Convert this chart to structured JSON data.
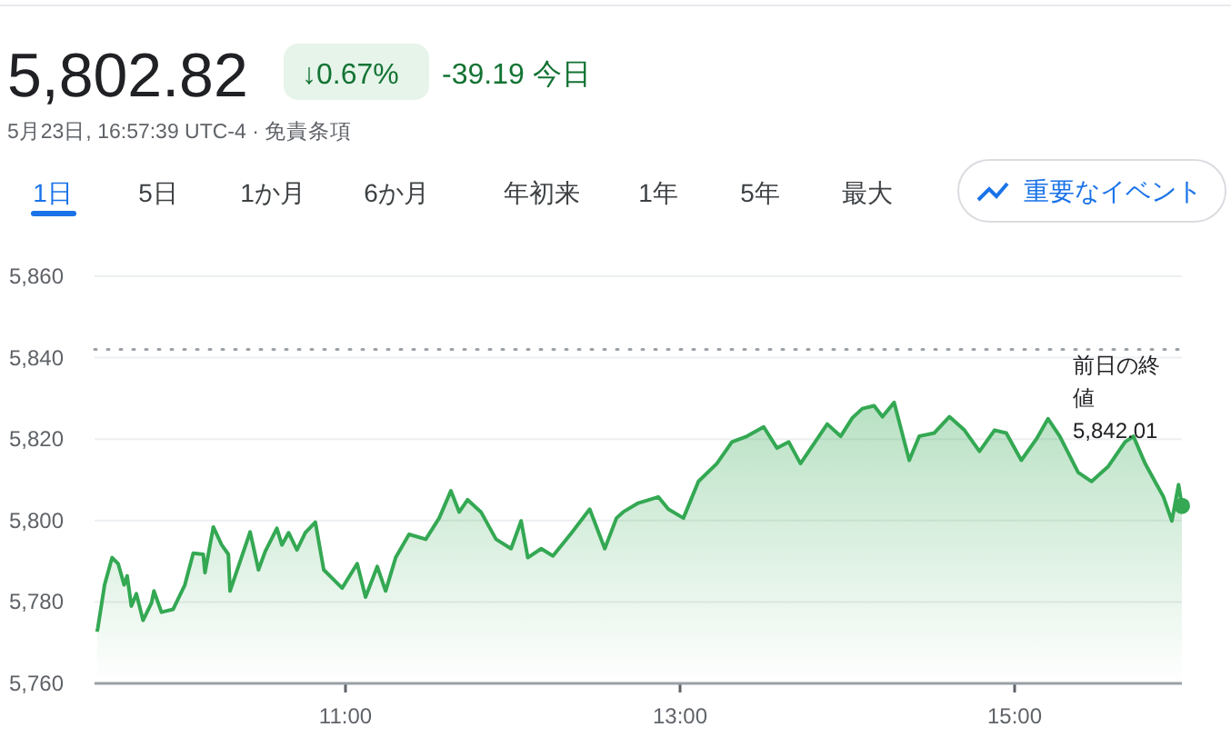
{
  "chart_data": {
    "type": "area",
    "title": "5,802.82",
    "subtitle": "5月23日, 16:57:39 UTC-4 · 免責条項",
    "annotations": [
      "↓0.67%",
      "-39.19 今日",
      "1日",
      "5日",
      "1か月",
      "6か月",
      "年初来",
      "1年",
      "5年",
      "最大",
      "重要なイベント"
    ],
    "x": [
      9.515,
      9.52,
      9.56,
      9.605,
      9.641,
      9.677,
      9.695,
      9.72,
      9.75,
      9.79,
      9.84,
      9.855,
      9.9,
      9.97,
      10.04,
      10.09,
      10.15,
      10.16,
      10.21,
      10.26,
      10.3,
      10.31,
      10.43,
      10.48,
      10.52,
      10.59,
      10.62,
      10.66,
      10.71,
      10.76,
      10.82,
      10.87,
      10.98,
      11.07,
      11.12,
      11.19,
      11.24,
      11.3,
      11.38,
      11.48,
      11.56,
      11.63,
      11.68,
      11.73,
      11.81,
      11.9,
      11.99,
      12.05,
      12.09,
      12.17,
      12.24,
      12.35,
      12.46,
      12.55,
      12.62,
      12.66,
      12.75,
      12.87,
      12.93,
      13.02,
      13.11,
      13.22,
      13.31,
      13.4,
      13.5,
      13.58,
      13.65,
      13.72,
      13.88,
      13.96,
      14.03,
      14.09,
      14.16,
      14.21,
      14.28,
      14.37,
      14.43,
      14.52,
      14.61,
      14.7,
      14.79,
      14.88,
      14.95,
      15.04,
      15.13,
      15.2,
      15.27,
      15.38,
      15.46,
      15.56,
      15.66,
      15.71,
      15.78,
      15.89,
      15.94,
      15.98,
      16.0
    ],
    "series": [
      {
        "color": "#34a853",
        "values": [
          5772.7,
          5773.7,
          5784.2,
          5790.9,
          5789.4,
          5784.2,
          5786.4,
          5779,
          5782,
          5775.5,
          5779.7,
          5782.7,
          5777.5,
          5778.2,
          5784.2,
          5792,
          5791.7,
          5787.2,
          5798.4,
          5794,
          5791.7,
          5782.7,
          5797.2,
          5787.9,
          5792.4,
          5798.1,
          5794,
          5797,
          5792.8,
          5797,
          5799.6,
          5787.9,
          5783.4,
          5789.4,
          5781.2,
          5788.7,
          5782.7,
          5790.9,
          5796.6,
          5795.4,
          5800.6,
          5807.3,
          5802.1,
          5805.1,
          5802.1,
          5795.4,
          5793.1,
          5799.9,
          5790.9,
          5793.1,
          5791.3,
          5796.9,
          5802.8,
          5793.1,
          5800.6,
          5802.1,
          5804.3,
          5805.8,
          5802.8,
          5800.6,
          5809.6,
          5814,
          5819.3,
          5820.7,
          5823,
          5817.8,
          5819.3,
          5814,
          5823.7,
          5820.7,
          5825.2,
          5827.5,
          5828.2,
          5825.5,
          5829,
          5814.8,
          5820.7,
          5821.5,
          5825.5,
          5822.2,
          5817,
          5822.2,
          5821.5,
          5814.8,
          5820,
          5825,
          5820.7,
          5811.8,
          5809.6,
          5813.3,
          5819.3,
          5820.7,
          5814,
          5805.8,
          5799.9,
          5808.8,
          5803.6
        ]
      }
    ],
    "xlim": [
      9.5,
      16
    ],
    "xticks": [
      {
        "value": 11,
        "label": "11:00"
      },
      {
        "value": 13,
        "label": "13:00"
      },
      {
        "value": 15,
        "label": "15:00"
      }
    ],
    "ylim": [
      5760,
      5860
    ],
    "yticks": [
      {
        "value": 5760,
        "label": "5,760"
      },
      {
        "value": 5780,
        "label": "5,780"
      },
      {
        "value": 5800,
        "label": "5,800"
      },
      {
        "value": 5820,
        "label": "5,820"
      },
      {
        "value": 5840,
        "label": "5,840"
      },
      {
        "value": 5860,
        "label": "5,860"
      }
    ],
    "grid": "y",
    "ref_lines": [
      {
        "axis": "y",
        "value": 5842.01,
        "label": "前日の終値 5,842.01",
        "color": "#9aa0a6",
        "line_style": "dotted"
      }
    ]
  }
}
